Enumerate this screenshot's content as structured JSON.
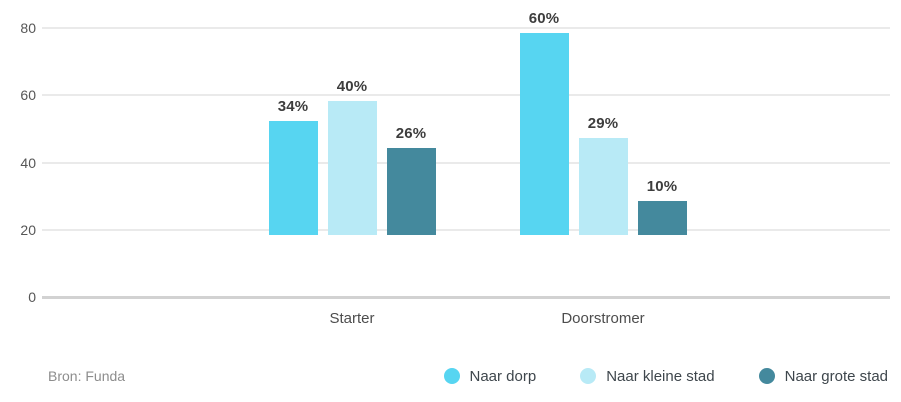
{
  "chart_data": {
    "type": "bar",
    "categories": [
      "Starter",
      "Doorstromer"
    ],
    "series": [
      {
        "name": "Naar dorp",
        "color": "#57d5f1",
        "values": [
          34,
          60
        ]
      },
      {
        "name": "Naar kleine stad",
        "color": "#b8eaf6",
        "values": [
          40,
          29
        ]
      },
      {
        "name": "Naar grote stad",
        "color": "#44899d",
        "values": [
          26,
          10
        ]
      }
    ],
    "value_suffix": "%",
    "yticks": [
      0,
      20,
      40,
      60,
      80
    ],
    "ylim": [
      0,
      80
    ],
    "grid": true,
    "legend_position": "bottom-right",
    "title": "",
    "xlabel": "",
    "ylabel": ""
  },
  "footer": {
    "source_label": "Bron: Funda"
  },
  "colors": {
    "background": "#ffffff",
    "gridline": "#eaeaea",
    "axis_line": "#d2d2d2",
    "tick_text": "#565656",
    "value_label_text": "#3d3d3d",
    "source_text": "#8d8d8d"
  }
}
